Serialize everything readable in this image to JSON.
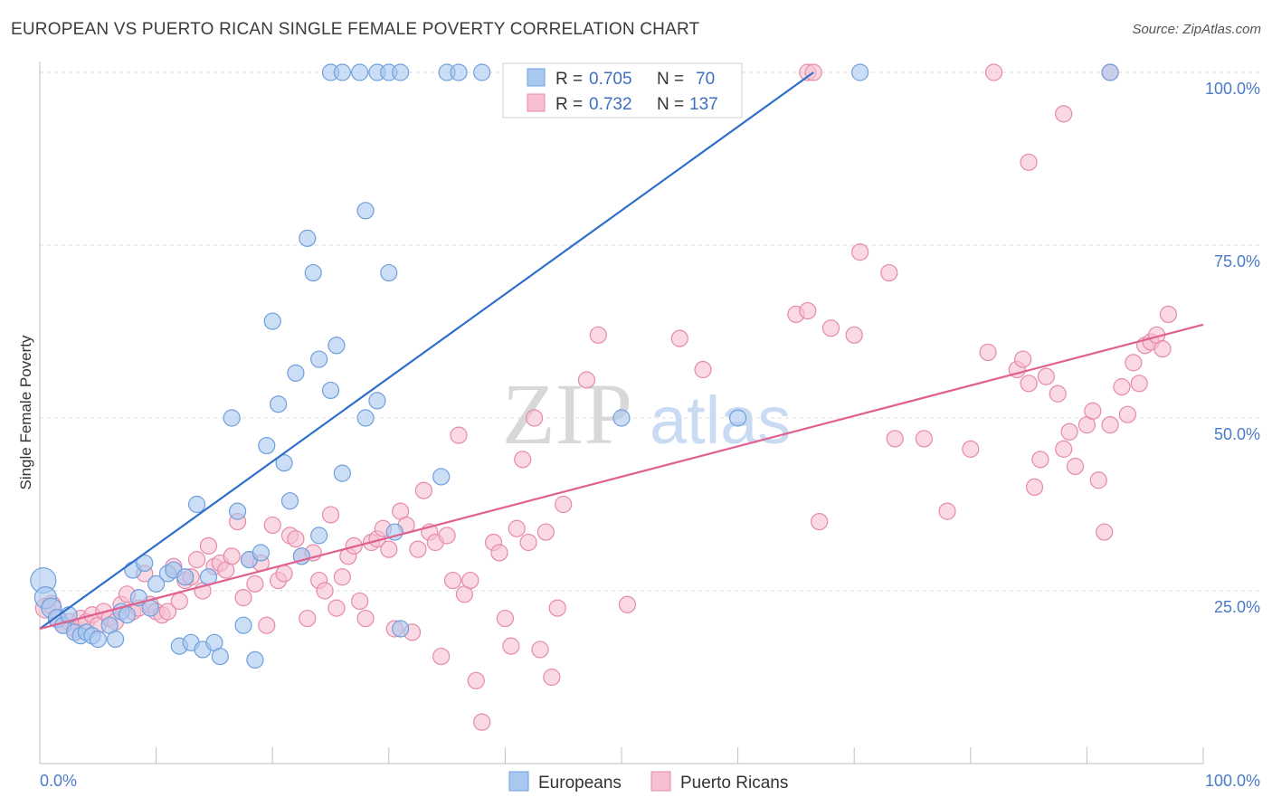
{
  "title": "EUROPEAN VS PUERTO RICAN SINGLE FEMALE POVERTY CORRELATION CHART",
  "source": "Source: ZipAtlas.com",
  "watermark": {
    "zip": "ZIP",
    "atlas": "atlas"
  },
  "colors": {
    "europeans_fill": "#a9c8f0",
    "europeans_stroke": "#6f9fdc",
    "europeans_line": "#2f6fcc",
    "puerto_fill": "#f7c0d0",
    "puerto_stroke": "#e58aa8",
    "puerto_line": "#e0608f",
    "tick_label": "#4a7bc8",
    "grid": "#dedede"
  },
  "legend": {
    "rows": [
      {
        "r_label": "R =",
        "r_value": "0.705",
        "n_label": "N =",
        "n_value": "70"
      },
      {
        "r_label": "R =",
        "r_value": "0.732",
        "n_label": "N =",
        "n_value": "137"
      }
    ]
  },
  "bottom_legend": [
    "Europeans",
    "Puerto Ricans"
  ],
  "chart_data": {
    "type": "scatter",
    "title": "EUROPEAN VS PUERTO RICAN SINGLE FEMALE POVERTY CORRELATION CHART",
    "xlabel": "",
    "ylabel": "Single Female Poverty",
    "xlim": [
      0,
      100
    ],
    "ylim": [
      0,
      100
    ],
    "x_tick_labels": [
      "0.0%",
      "100.0%"
    ],
    "y_tick_labels": [
      "25.0%",
      "50.0%",
      "75.0%",
      "100.0%"
    ],
    "y_ticks": [
      25,
      50,
      75,
      100
    ],
    "grid": true,
    "legend_position": "top-center",
    "series": [
      {
        "name": "Europeans",
        "R": 0.705,
        "N": 70,
        "trend": [
          [
            0,
            19.5
          ],
          [
            66.5,
            100
          ]
        ],
        "points": [
          [
            0.3,
            26.5,
            14
          ],
          [
            0.5,
            24,
            12
          ],
          [
            1,
            22.5,
            11
          ],
          [
            1.5,
            21,
            10
          ],
          [
            2,
            20,
            9
          ],
          [
            2.5,
            21.5,
            9
          ],
          [
            3,
            19,
            9
          ],
          [
            3.5,
            18.5,
            9
          ],
          [
            4,
            19,
            9
          ],
          [
            4.5,
            18.5,
            9
          ],
          [
            5,
            18,
            9
          ],
          [
            6,
            20,
            9
          ],
          [
            6.5,
            18,
            9
          ],
          [
            7,
            22,
            9
          ],
          [
            7.5,
            21.5,
            9
          ],
          [
            8,
            28,
            9
          ],
          [
            8.5,
            24,
            9
          ],
          [
            9,
            29,
            9
          ],
          [
            9.5,
            22.5,
            9
          ],
          [
            10,
            26,
            9
          ],
          [
            11,
            27.5,
            9
          ],
          [
            11.5,
            28,
            9
          ],
          [
            12,
            17,
            9
          ],
          [
            12.5,
            27,
            9
          ],
          [
            13,
            17.5,
            9
          ],
          [
            13.5,
            37.5,
            9
          ],
          [
            14,
            16.5,
            9
          ],
          [
            14.5,
            27,
            9
          ],
          [
            15,
            17.5,
            9
          ],
          [
            15.5,
            15.5,
            9
          ],
          [
            16.5,
            50,
            9
          ],
          [
            17,
            36.5,
            9
          ],
          [
            17.5,
            20,
            9
          ],
          [
            18,
            29.5,
            9
          ],
          [
            18.5,
            15,
            9
          ],
          [
            19,
            30.5,
            9
          ],
          [
            19.5,
            46,
            9
          ],
          [
            20,
            64,
            9
          ],
          [
            20.5,
            52,
            9
          ],
          [
            21,
            43.5,
            9
          ],
          [
            21.5,
            38,
            9
          ],
          [
            22,
            56.5,
            9
          ],
          [
            22.5,
            30,
            9
          ],
          [
            23,
            76,
            9
          ],
          [
            23.5,
            71,
            9
          ],
          [
            24,
            58.5,
            9
          ],
          [
            24,
            33,
            9
          ],
          [
            25,
            54,
            9
          ],
          [
            25.5,
            60.5,
            9
          ],
          [
            26,
            42,
            9
          ],
          [
            28,
            50,
            9
          ],
          [
            28,
            80,
            9
          ],
          [
            29,
            52.5,
            9
          ],
          [
            30,
            71,
            9
          ],
          [
            30.5,
            33.5,
            9
          ],
          [
            31,
            19.5,
            9
          ],
          [
            34.5,
            41.5,
            9
          ],
          [
            50,
            50,
            9
          ],
          [
            60,
            50,
            9
          ],
          [
            25,
            100,
            9
          ],
          [
            26,
            100,
            9
          ],
          [
            27.5,
            100,
            9
          ],
          [
            29,
            100,
            9
          ],
          [
            30,
            100,
            9
          ],
          [
            31,
            100,
            9
          ],
          [
            35,
            100,
            9
          ],
          [
            36,
            100,
            9
          ],
          [
            38,
            100,
            9
          ],
          [
            70.5,
            100,
            9
          ],
          [
            92,
            100,
            9
          ]
        ]
      },
      {
        "name": "Puerto Ricans",
        "R": 0.732,
        "N": 137,
        "trend": [
          [
            0,
            19.5
          ],
          [
            100,
            63.5
          ]
        ],
        "points": [
          [
            0.5,
            22.5,
            11
          ],
          [
            1,
            23,
            10
          ],
          [
            1.5,
            21,
            9
          ],
          [
            2,
            20,
            9
          ],
          [
            2.5,
            20.5,
            9
          ],
          [
            3,
            19.5,
            9
          ],
          [
            3.5,
            21,
            9
          ],
          [
            4,
            20.5,
            9
          ],
          [
            4.5,
            21.5,
            9
          ],
          [
            5,
            20,
            9
          ],
          [
            5.5,
            22,
            9
          ],
          [
            6,
            21,
            9
          ],
          [
            6.5,
            20.5,
            9
          ],
          [
            7,
            23,
            9
          ],
          [
            7.5,
            24.5,
            9
          ],
          [
            8,
            22,
            9
          ],
          [
            8.5,
            22.5,
            9
          ],
          [
            9,
            27.5,
            9
          ],
          [
            9.5,
            23,
            9
          ],
          [
            10,
            22,
            9
          ],
          [
            10.5,
            21.5,
            9
          ],
          [
            11,
            22,
            9
          ],
          [
            11.5,
            28.5,
            9
          ],
          [
            12,
            23.5,
            9
          ],
          [
            12.5,
            26.5,
            9
          ],
          [
            13,
            27,
            9
          ],
          [
            13.5,
            29.5,
            9
          ],
          [
            14,
            25,
            9
          ],
          [
            14.5,
            31.5,
            9
          ],
          [
            15,
            28.5,
            9
          ],
          [
            15.5,
            29,
            9
          ],
          [
            16,
            28,
            9
          ],
          [
            16.5,
            30,
            9
          ],
          [
            17,
            35,
            9
          ],
          [
            17.5,
            24,
            9
          ],
          [
            18,
            29.5,
            9
          ],
          [
            18.5,
            26,
            9
          ],
          [
            19,
            29,
            9
          ],
          [
            19.5,
            20,
            9
          ],
          [
            20,
            34.5,
            9
          ],
          [
            20.5,
            26.5,
            9
          ],
          [
            21,
            27.5,
            9
          ],
          [
            21.5,
            33,
            9
          ],
          [
            22,
            32.5,
            9
          ],
          [
            22.5,
            30,
            9
          ],
          [
            23,
            21,
            9
          ],
          [
            23.5,
            30.5,
            9
          ],
          [
            24,
            26.5,
            9
          ],
          [
            24.5,
            25,
            9
          ],
          [
            25,
            36,
            9
          ],
          [
            25.5,
            22.5,
            9
          ],
          [
            26,
            27,
            9
          ],
          [
            26.5,
            30,
            9
          ],
          [
            27,
            31.5,
            9
          ],
          [
            27.5,
            23.5,
            9
          ],
          [
            28,
            21,
            9
          ],
          [
            28.5,
            32,
            9
          ],
          [
            29,
            32.5,
            9
          ],
          [
            29.5,
            34,
            9
          ],
          [
            30,
            31,
            9
          ],
          [
            30.5,
            19.5,
            9
          ],
          [
            31,
            36.5,
            9
          ],
          [
            31.5,
            34.5,
            9
          ],
          [
            32,
            19,
            9
          ],
          [
            32.5,
            31,
            9
          ],
          [
            33,
            39.5,
            9
          ],
          [
            33.5,
            33.5,
            9
          ],
          [
            34,
            32,
            9
          ],
          [
            34.5,
            15.5,
            9
          ],
          [
            35,
            33,
            9
          ],
          [
            35.5,
            26.5,
            9
          ],
          [
            36,
            47.5,
            9
          ],
          [
            36.5,
            24.5,
            9
          ],
          [
            37,
            26.5,
            9
          ],
          [
            37.5,
            12,
            9
          ],
          [
            38,
            6,
            9
          ],
          [
            39,
            32,
            9
          ],
          [
            39.5,
            30.5,
            9
          ],
          [
            40,
            21,
            9
          ],
          [
            40.5,
            17,
            9
          ],
          [
            41,
            34,
            9
          ],
          [
            41.5,
            44,
            9
          ],
          [
            42,
            32,
            9
          ],
          [
            42.5,
            50,
            9
          ],
          [
            43,
            16.5,
            9
          ],
          [
            43.5,
            33.5,
            9
          ],
          [
            44,
            12.5,
            9
          ],
          [
            44.5,
            22.5,
            9
          ],
          [
            45,
            37.5,
            9
          ],
          [
            47,
            55.5,
            9
          ],
          [
            48,
            62,
            9
          ],
          [
            50.5,
            23,
            9
          ],
          [
            55,
            61.5,
            9
          ],
          [
            57,
            57,
            9
          ],
          [
            65,
            65,
            9
          ],
          [
            66,
            65.5,
            9
          ],
          [
            67,
            35,
            9
          ],
          [
            68,
            63,
            9
          ],
          [
            70,
            62,
            9
          ],
          [
            70.5,
            74,
            9
          ],
          [
            73,
            71,
            9
          ],
          [
            73.5,
            47,
            9
          ],
          [
            76,
            47,
            9
          ],
          [
            78,
            36.5,
            9
          ],
          [
            80,
            45.5,
            9
          ],
          [
            81.5,
            59.5,
            9
          ],
          [
            84,
            57,
            9
          ],
          [
            84.5,
            58.5,
            9
          ],
          [
            85,
            55,
            9
          ],
          [
            85.5,
            40,
            9
          ],
          [
            86,
            44,
            9
          ],
          [
            86.5,
            56,
            9
          ],
          [
            87.5,
            53.5,
            9
          ],
          [
            88,
            45.5,
            9
          ],
          [
            88.5,
            48,
            9
          ],
          [
            89,
            43,
            9
          ],
          [
            90,
            49,
            9
          ],
          [
            90.5,
            51,
            9
          ],
          [
            91,
            41,
            9
          ],
          [
            91.5,
            33.5,
            9
          ],
          [
            92,
            49,
            9
          ],
          [
            93,
            54.5,
            9
          ],
          [
            93.5,
            50.5,
            9
          ],
          [
            94,
            58,
            9
          ],
          [
            94.5,
            55,
            9
          ],
          [
            95,
            60.5,
            9
          ],
          [
            95.5,
            61,
            9
          ],
          [
            96,
            62,
            9
          ],
          [
            96.5,
            60,
            9
          ],
          [
            97,
            65,
            9
          ],
          [
            66,
            100,
            9
          ],
          [
            66.5,
            100,
            9
          ],
          [
            82,
            100,
            9
          ],
          [
            85,
            87,
            9
          ],
          [
            88,
            94,
            9
          ],
          [
            92,
            100,
            9
          ]
        ]
      }
    ]
  }
}
